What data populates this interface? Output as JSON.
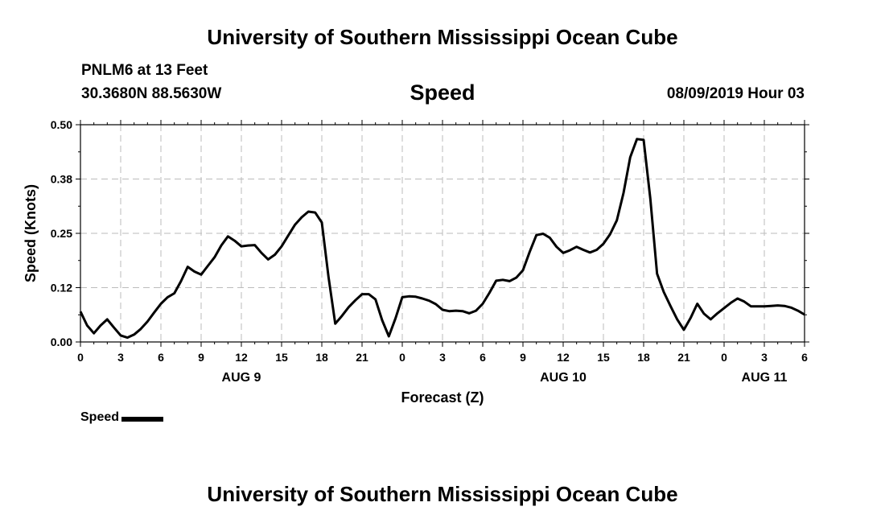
{
  "header": {
    "title": "University of Southern Mississippi Ocean Cube",
    "station": "PNLM6 at 13 Feet",
    "coordinates": "30.3680N 88.5630W",
    "chart_title": "Speed",
    "datetime": "08/09/2019 Hour 03"
  },
  "footer": {
    "title": "University of Southern Mississippi Ocean Cube"
  },
  "legend": {
    "label": "Speed"
  },
  "colors": {
    "line": "#000000",
    "grid": "#bbbbbb",
    "background": "#ffffff"
  },
  "chart_data": {
    "type": "line",
    "title": "Speed",
    "xlabel": "Forecast (Z)",
    "ylabel": "Speed (Knots)",
    "xlim": [
      0,
      54
    ],
    "ylim": [
      0,
      0.5
    ],
    "yticks": [
      "0.00",
      "0.12",
      "0.25",
      "0.38",
      "0.50"
    ],
    "xticks": [
      "0",
      "3",
      "6",
      "9",
      "12",
      "15",
      "18",
      "21",
      "0",
      "3",
      "6",
      "9",
      "12",
      "15",
      "18",
      "21",
      "0",
      "3",
      "6"
    ],
    "day_labels": [
      {
        "label": "AUG 9",
        "at_hour": 12
      },
      {
        "label": "AUG 10",
        "at_hour": 36
      },
      {
        "label": "AUG 11",
        "at_hour": 51
      }
    ],
    "grid": true,
    "series": [
      {
        "name": "Speed",
        "x": [
          0,
          0.5,
          1,
          1.5,
          2,
          2.5,
          3,
          3.5,
          4,
          4.5,
          5,
          5.5,
          6,
          6.5,
          7,
          7.5,
          8,
          8.5,
          9,
          9.5,
          10,
          10.5,
          11,
          11.5,
          12,
          12.5,
          13,
          13.5,
          14,
          14.5,
          15,
          15.5,
          16,
          16.5,
          17,
          17.5,
          18,
          18.5,
          19,
          19.5,
          20,
          20.5,
          21,
          21.5,
          22,
          22.5,
          23,
          23.5,
          24,
          24.5,
          25,
          25.5,
          26,
          26.5,
          27,
          27.5,
          28,
          28.5,
          29,
          29.5,
          30,
          30.5,
          31,
          31.5,
          32,
          32.5,
          33,
          33.5,
          34,
          34.5,
          35,
          35.5,
          36,
          36.5,
          37,
          37.5,
          38,
          38.5,
          39,
          39.5,
          40,
          40.5,
          41,
          41.5,
          42,
          42.5,
          43,
          43.5,
          44,
          44.5,
          45,
          45.5,
          46,
          46.5,
          47,
          47.5,
          48,
          48.5,
          49,
          49.5,
          50,
          50.5,
          51,
          51.5,
          52,
          52.5,
          53,
          53.5,
          54
        ],
        "values": [
          0.07,
          0.038,
          0.02,
          0.038,
          0.052,
          0.033,
          0.015,
          0.01,
          0.017,
          0.03,
          0.047,
          0.068,
          0.088,
          0.103,
          0.112,
          0.14,
          0.173,
          0.162,
          0.155,
          0.175,
          0.195,
          0.222,
          0.243,
          0.233,
          0.22,
          0.222,
          0.223,
          0.205,
          0.19,
          0.201,
          0.22,
          0.245,
          0.27,
          0.287,
          0.3,
          0.298,
          0.275,
          0.15,
          0.042,
          0.06,
          0.08,
          0.096,
          0.11,
          0.11,
          0.098,
          0.05,
          0.013,
          0.055,
          0.103,
          0.105,
          0.104,
          0.1,
          0.095,
          0.087,
          0.074,
          0.071,
          0.072,
          0.071,
          0.066,
          0.072,
          0.088,
          0.113,
          0.141,
          0.143,
          0.14,
          0.148,
          0.165,
          0.207,
          0.246,
          0.249,
          0.24,
          0.219,
          0.205,
          0.211,
          0.219,
          0.212,
          0.206,
          0.212,
          0.226,
          0.248,
          0.28,
          0.343,
          0.425,
          0.467,
          0.465,
          0.33,
          0.157,
          0.115,
          0.083,
          0.052,
          0.028,
          0.055,
          0.088,
          0.065,
          0.052,
          0.066,
          0.078,
          0.09,
          0.1,
          0.093,
          0.082,
          0.082,
          0.082,
          0.083,
          0.084,
          0.083,
          0.079,
          0.072,
          0.063
        ]
      }
    ]
  }
}
